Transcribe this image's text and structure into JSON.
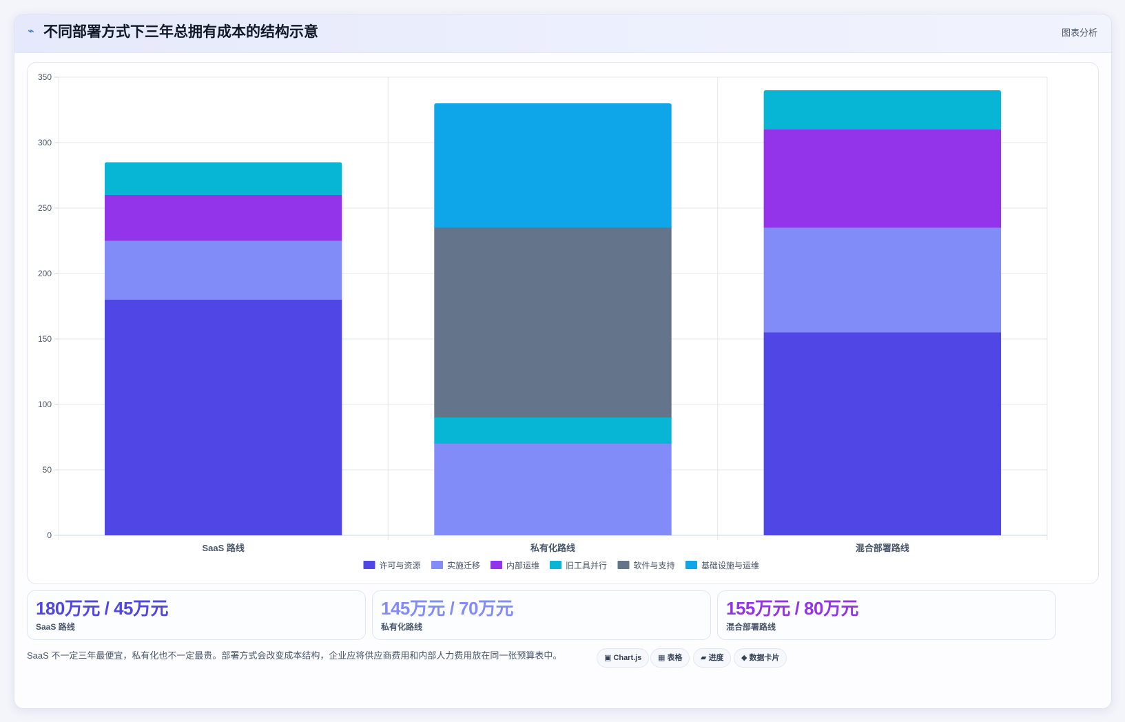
{
  "header": {
    "icon": "activity-icon",
    "title": "不同部署方式下三年总拥有成本的结构示意",
    "tag": "图表分析"
  },
  "chart_data": {
    "type": "bar",
    "stacked": true,
    "categories": [
      "SaaS 路线",
      "私有化路线",
      "混合部署路线"
    ],
    "series": [
      {
        "name": "许可与资源",
        "color": "#4f46e5",
        "values": [
          180,
          0,
          155
        ]
      },
      {
        "name": "实施迁移",
        "color": "#818cf8",
        "values": [
          45,
          70,
          80
        ]
      },
      {
        "name": "内部运维",
        "color": "#9333ea",
        "values": [
          35,
          0,
          75
        ]
      },
      {
        "name": "旧工具并行",
        "color": "#06b6d4",
        "values": [
          25,
          20,
          30
        ]
      },
      {
        "name": "软件与支持",
        "color": "#64748b",
        "values": [
          0,
          145,
          0
        ]
      },
      {
        "name": "基础设施与运维",
        "color": "#0ea5e9",
        "values": [
          0,
          95,
          0
        ]
      }
    ],
    "ylim": [
      0,
      350
    ],
    "yticks": [
      0,
      50,
      100,
      150,
      200,
      250,
      300,
      350
    ],
    "grid": true,
    "legend_position": "bottom"
  },
  "stats": [
    {
      "value": "180万元 / 45万元",
      "label": "SaaS 路线",
      "color": "#4f46e5"
    },
    {
      "value": "145万元 / 70万元",
      "label": "私有化路线",
      "color": "#818cf8"
    },
    {
      "value": "155万元 / 80万元",
      "label": "混合部署路线",
      "color": "#9333ea"
    }
  ],
  "footer": {
    "note": "SaaS 不一定三年最便宜，私有化也不一定最贵。部署方式会改变成本结构，企业应将供应商费用和内部人力费用放在同一张预算表中。"
  },
  "chips": [
    {
      "icon": "▣",
      "icon_name": "chart-icon",
      "label": "Chart.js"
    },
    {
      "icon": "▦",
      "icon_name": "table-icon",
      "label": "表格"
    },
    {
      "icon": "▰",
      "icon_name": "progress-icon",
      "label": "进度"
    },
    {
      "icon": "◆",
      "icon_name": "data-card-icon",
      "label": "数据卡片"
    }
  ]
}
